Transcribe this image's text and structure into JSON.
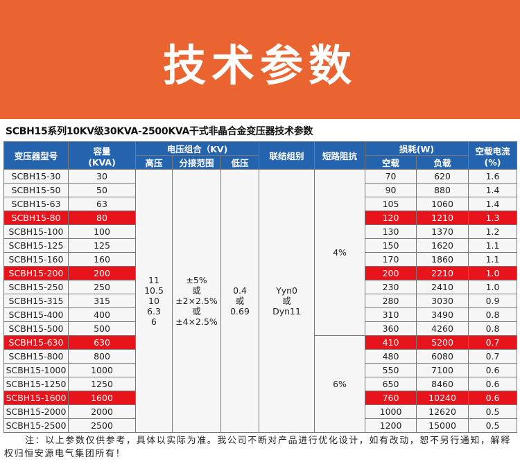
{
  "banner": {
    "title": "技术参数"
  },
  "subtitle": "SCBH15系列10KV级30KVA-2500KVA干式非晶合金变压器技术参数",
  "table": {
    "headers": {
      "model": "变压器型号",
      "capacity": "容量",
      "capacity_unit": "(KVA)",
      "voltage_group": "电压组合（KV)",
      "high_voltage": "高压",
      "tap_range": "分接范围",
      "low_voltage": "低压",
      "connection": "联结组别",
      "impedance": "短路阻抗",
      "losses": "损耗(W)",
      "noload_loss": "空载",
      "load_loss": "负载",
      "noload_current": "空载电流",
      "noload_current_unit": "(%)"
    },
    "merged": {
      "high_voltage": [
        "11",
        "10.5",
        "10",
        "6.3",
        "6"
      ],
      "tap_range": [
        "±5%",
        "或",
        "±2×2.5%",
        "或",
        "±4×2.5%"
      ],
      "low_voltage": [
        "0.4",
        "或",
        "0.69"
      ],
      "connection": [
        "Yyn0",
        "或",
        "Dyn11"
      ],
      "impedance_1": "4%",
      "impedance_2": "6%"
    },
    "rows": [
      {
        "model": "SCBH15-30",
        "capacity": "30",
        "noload": "70",
        "load": "620",
        "current": "1.6",
        "highlight": false
      },
      {
        "model": "SCBH15-50",
        "capacity": "50",
        "noload": "90",
        "load": "880",
        "current": "1.4",
        "highlight": false
      },
      {
        "model": "SCBH15-63",
        "capacity": "63",
        "noload": "105",
        "load": "1060",
        "current": "1.4",
        "highlight": false
      },
      {
        "model": "SCBH15-80",
        "capacity": "80",
        "noload": "120",
        "load": "1210",
        "current": "1.3",
        "highlight": true
      },
      {
        "model": "SCBH15-100",
        "capacity": "100",
        "noload": "130",
        "load": "1370",
        "current": "1.2",
        "highlight": false
      },
      {
        "model": "SCBH15-125",
        "capacity": "125",
        "noload": "150",
        "load": "1620",
        "current": "1.1",
        "highlight": false
      },
      {
        "model": "SCBH15-160",
        "capacity": "160",
        "noload": "170",
        "load": "1860",
        "current": "1.1",
        "highlight": false
      },
      {
        "model": "SCBH15-200",
        "capacity": "200",
        "noload": "200",
        "load": "2210",
        "current": "1.0",
        "highlight": true
      },
      {
        "model": "SCBH15-250",
        "capacity": "250",
        "noload": "230",
        "load": "2410",
        "current": "1.0",
        "highlight": false
      },
      {
        "model": "SCBH15-315",
        "capacity": "315",
        "noload": "280",
        "load": "3030",
        "current": "0.9",
        "highlight": false
      },
      {
        "model": "SCBH15-400",
        "capacity": "400",
        "noload": "310",
        "load": "3490",
        "current": "0.8",
        "highlight": false
      },
      {
        "model": "SCBH15-500",
        "capacity": "500",
        "noload": "360",
        "load": "4260",
        "current": "0.8",
        "highlight": false
      },
      {
        "model": "SCBH15-630",
        "capacity": "630",
        "noload": "410",
        "load": "5200",
        "current": "0.7",
        "highlight": true
      },
      {
        "model": "SCBH15-800",
        "capacity": "800",
        "noload": "480",
        "load": "6080",
        "current": "0.7",
        "highlight": false
      },
      {
        "model": "SCBH15-1000",
        "capacity": "1000",
        "noload": "550",
        "load": "7100",
        "current": "0.6",
        "highlight": false
      },
      {
        "model": "SCBH15-1250",
        "capacity": "1250",
        "noload": "650",
        "load": "8460",
        "current": "0.6",
        "highlight": false
      },
      {
        "model": "SCBH15-1600",
        "capacity": "1600",
        "noload": "760",
        "load": "10240",
        "current": "0.6",
        "highlight": true
      },
      {
        "model": "SCBH15-2000",
        "capacity": "2000",
        "noload": "1000",
        "load": "12620",
        "current": "0.5",
        "highlight": false
      },
      {
        "model": "SCBH15-2500",
        "capacity": "2500",
        "noload": "1200",
        "load": "15000",
        "current": "0.5",
        "highlight": false
      }
    ]
  },
  "note": "注：以上参数仅供参考，具体以实际为准。我公司不断对产品进行优化设计，如有改动，恕不另行通知，解释权归恒安源电气集团所有！",
  "colors": {
    "banner": "#e96430",
    "header": "#2463ad",
    "highlight": "#e8141c",
    "cell": "#f6f6f6"
  }
}
